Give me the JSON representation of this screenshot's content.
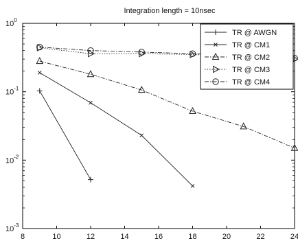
{
  "chart_data": {
    "type": "line",
    "title": "Integration length = 10nsec",
    "xlabel": "",
    "ylabel": "",
    "xlim": [
      8,
      24
    ],
    "ylim": [
      0.001,
      1
    ],
    "yscale": "log",
    "grid": false,
    "legend_position": "top-right",
    "xticks": [
      8,
      10,
      12,
      14,
      16,
      18,
      20,
      22,
      24
    ],
    "xtick_labels": [
      "8",
      "10",
      "12",
      "14",
      "16",
      "18",
      "20",
      "22",
      "24"
    ],
    "yticks": [
      {
        "value": 1,
        "base": "10",
        "exp": "0"
      },
      {
        "value": 0.1,
        "base": "10",
        "exp": "-1"
      },
      {
        "value": 0.01,
        "base": "10",
        "exp": "-2"
      },
      {
        "value": 0.001,
        "base": "10",
        "exp": "-3"
      }
    ],
    "series": [
      {
        "name": "TR @ AWGN",
        "marker": "plus",
        "dash": "solid",
        "x": [
          9,
          12
        ],
        "y": [
          0.103,
          0.0052
        ]
      },
      {
        "name": "TR @ CM1",
        "marker": "x",
        "dash": "solid",
        "x": [
          9,
          12,
          15,
          18
        ],
        "y": [
          0.19,
          0.069,
          0.023,
          0.0042
        ]
      },
      {
        "name": "TR @ CM2",
        "marker": "triangle",
        "dash": "dashdot",
        "x": [
          9,
          12,
          15,
          18,
          21,
          24
        ],
        "y": [
          0.28,
          0.18,
          0.106,
          0.052,
          0.031,
          0.015
        ]
      },
      {
        "name": "TR @ CM3",
        "marker": "triangle-right",
        "dash": "dotted",
        "x": [
          9,
          12,
          15,
          18,
          21,
          24
        ],
        "y": [
          0.44,
          0.36,
          0.36,
          0.35,
          0.32,
          0.3
        ]
      },
      {
        "name": "TR @ CM4",
        "marker": "circle",
        "dash": "dashdot",
        "x": [
          9,
          12,
          15,
          18,
          21,
          24
        ],
        "y": [
          0.45,
          0.4,
          0.38,
          0.36,
          0.33,
          0.31
        ]
      }
    ]
  }
}
